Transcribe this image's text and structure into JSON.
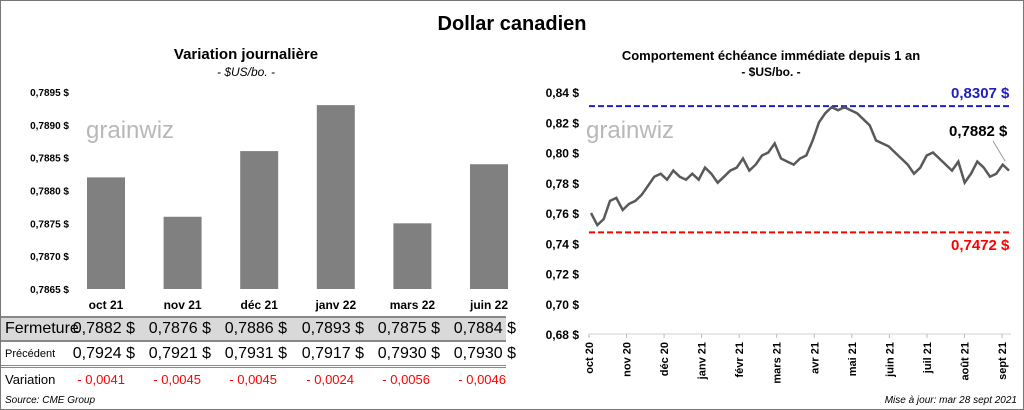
{
  "title": "Dollar canadien",
  "left": {
    "title": "Variation  journalière",
    "subtitle": "- $US/bo. -",
    "watermark": "grainwiz"
  },
  "right": {
    "title": "Comportement échéance immédiate depuis 1 an",
    "subtitle": "- $US/bo. -",
    "watermark": "grainwiz",
    "max_label": "0,8307 $",
    "last_label": "0,7882 $",
    "min_label": "0,7472 $"
  },
  "table": {
    "rows": [
      {
        "label": "Fermeture",
        "values": [
          "0,7882  $",
          "0,7876  $",
          "0,7886  $",
          "0,7893  $",
          "0,7875  $",
          "0,7884  $"
        ]
      },
      {
        "label": "Précédent",
        "values": [
          "0,7924  $",
          "0,7921  $",
          "0,7931  $",
          "0,7917  $",
          "0,7930  $",
          "0,7930  $"
        ]
      },
      {
        "label": "Variation",
        "values": [
          "- 0,0041",
          "- 0,0045",
          "- 0,0045",
          "- 0,0024",
          "- 0,0056",
          "- 0,0046"
        ]
      }
    ]
  },
  "source": "Source: CME Group",
  "updated": "Mise à jour: mar 28 sept 2021",
  "colors": {
    "bar": "#808080",
    "line": "#595959",
    "max": "#2020c0",
    "min": "#ff0000",
    "neg": "#ff0000"
  },
  "chart_data": [
    {
      "type": "bar",
      "title": "Variation  journalière",
      "categories": [
        "oct 21",
        "nov 21",
        "déc 21",
        "janv 22",
        "mars 22",
        "juin 22"
      ],
      "values": [
        0.7882,
        0.7876,
        0.7886,
        0.7893,
        0.7875,
        0.7884
      ],
      "ylim": [
        0.7865,
        0.7895
      ],
      "yticks": [
        "0,7865 $",
        "0,7870 $",
        "0,7875 $",
        "0,7880 $",
        "0,7885 $",
        "0,7890 $",
        "0,7895 $"
      ],
      "ytick_values": [
        0.7865,
        0.787,
        0.7875,
        0.788,
        0.7885,
        0.789,
        0.7895
      ]
    },
    {
      "type": "line",
      "title": "Comportement échéance immédiate depuis 1 an",
      "ylim": [
        0.68,
        0.84
      ],
      "yticks": [
        "0,68 $",
        "0,70 $",
        "0,72 $",
        "0,74 $",
        "0,76 $",
        "0,78 $",
        "0,80 $",
        "0,82 $",
        "0,84 $"
      ],
      "ytick_values": [
        0.68,
        0.7,
        0.72,
        0.74,
        0.76,
        0.78,
        0.8,
        0.82,
        0.84
      ],
      "xticks": [
        "oct 20",
        "nov 20",
        "déc 20",
        "janv 21",
        "févr 21",
        "mars 21",
        "avr 21",
        "mai 21",
        "juin 21",
        "juil 21",
        "août 21",
        "sept 21"
      ],
      "values": [
        0.76,
        0.752,
        0.756,
        0.768,
        0.77,
        0.762,
        0.766,
        0.768,
        0.772,
        0.778,
        0.784,
        0.786,
        0.782,
        0.788,
        0.784,
        0.782,
        0.786,
        0.782,
        0.79,
        0.786,
        0.78,
        0.784,
        0.788,
        0.79,
        0.796,
        0.788,
        0.792,
        0.798,
        0.8,
        0.806,
        0.796,
        0.794,
        0.792,
        0.796,
        0.798,
        0.808,
        0.82,
        0.826,
        0.83,
        0.828,
        0.83,
        0.828,
        0.826,
        0.822,
        0.818,
        0.808,
        0.806,
        0.804,
        0.8,
        0.796,
        0.792,
        0.786,
        0.79,
        0.798,
        0.8,
        0.796,
        0.792,
        0.788,
        0.794,
        0.78,
        0.786,
        0.794,
        0.79,
        0.784,
        0.786,
        0.792,
        0.788
      ],
      "max": 0.8307,
      "min": 0.7472,
      "last": 0.7882
    }
  ]
}
